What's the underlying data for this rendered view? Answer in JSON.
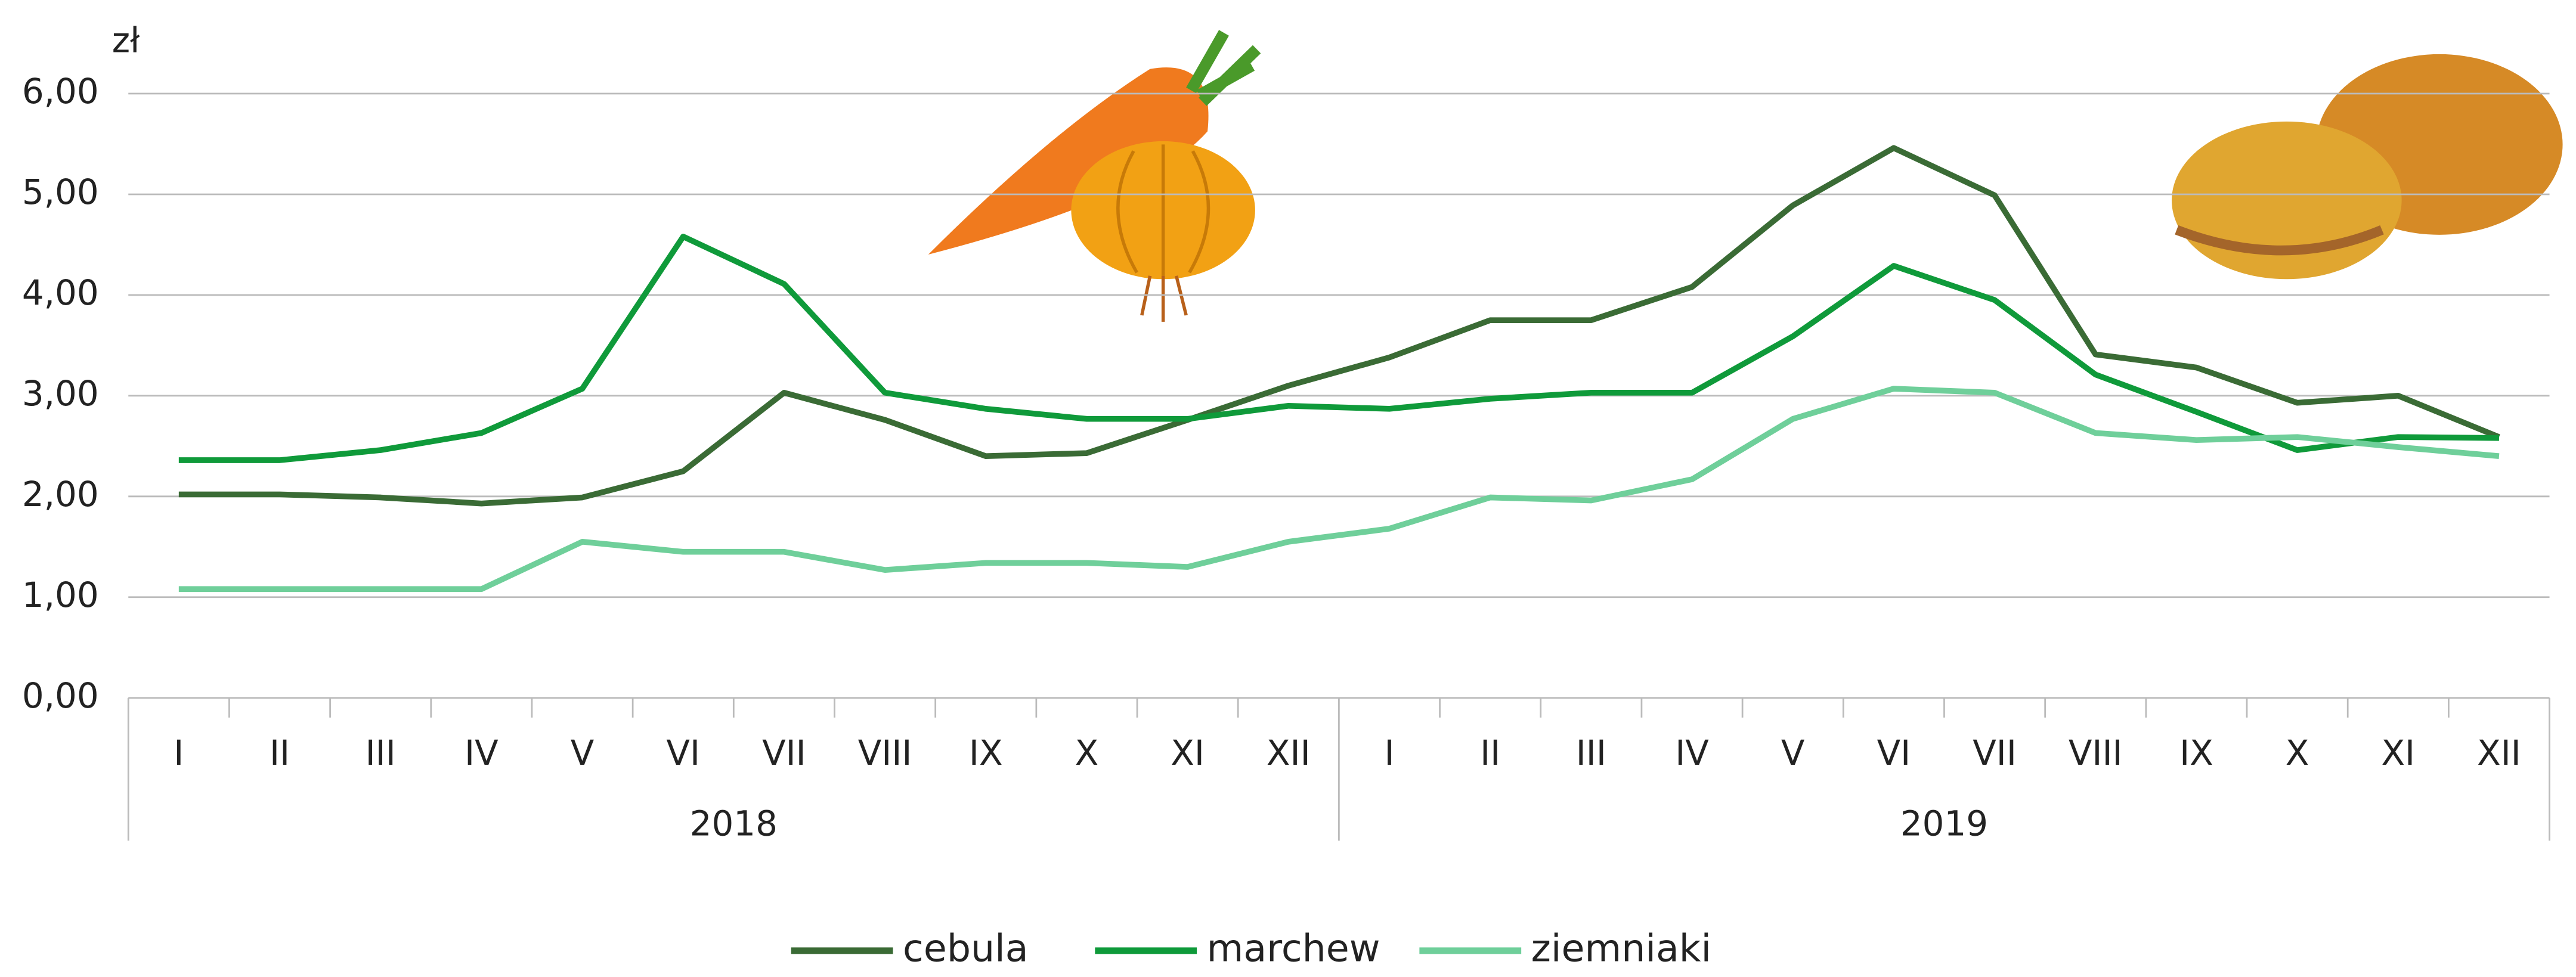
{
  "chart_data": {
    "type": "line",
    "y_unit": "zł",
    "categories": [
      "I",
      "II",
      "III",
      "IV",
      "V",
      "VI",
      "VII",
      "VIII",
      "IX",
      "X",
      "XI",
      "XII",
      "I",
      "II",
      "III",
      "IV",
      "V",
      "VI",
      "VII",
      "VIII",
      "IX",
      "X",
      "XI",
      "XII"
    ],
    "years": [
      "2018",
      "2019"
    ],
    "ylim": [
      0,
      6
    ],
    "yticks": [
      {
        "value": 0,
        "label": "0,00"
      },
      {
        "value": 1,
        "label": "1,00"
      },
      {
        "value": 2,
        "label": "2,00"
      },
      {
        "value": 3,
        "label": "3,00"
      },
      {
        "value": 4,
        "label": "4,00"
      },
      {
        "value": 5,
        "label": "5,00"
      },
      {
        "value": 6,
        "label": "6,00"
      }
    ],
    "grid": true,
    "legend": "bottom",
    "series": [
      {
        "name": "cebula",
        "color": "#3a6b35",
        "values": [
          2.02,
          2.02,
          1.99,
          1.93,
          1.99,
          2.25,
          3.03,
          2.76,
          2.4,
          2.43,
          2.76,
          3.1,
          3.38,
          3.75,
          3.75,
          4.08,
          4.89,
          5.46,
          4.99,
          3.41,
          3.28,
          2.93,
          3.0,
          2.59
        ]
      },
      {
        "name": "marchew",
        "color": "#0f9a3a",
        "values": [
          2.36,
          2.36,
          2.46,
          2.63,
          3.07,
          4.58,
          4.11,
          3.03,
          2.87,
          2.77,
          2.77,
          2.9,
          2.87,
          2.97,
          3.03,
          3.03,
          3.59,
          4.29,
          3.95,
          3.21,
          2.84,
          2.46,
          2.59,
          2.58
        ]
      },
      {
        "name": "ziemniaki",
        "color": "#6fcf9a",
        "values": [
          1.08,
          1.08,
          1.08,
          1.08,
          1.55,
          1.45,
          1.45,
          1.27,
          1.34,
          1.34,
          1.3,
          1.55,
          1.68,
          1.99,
          1.96,
          2.17,
          2.77,
          3.07,
          3.03,
          2.63,
          2.56,
          2.59,
          2.49,
          2.4
        ]
      }
    ]
  }
}
